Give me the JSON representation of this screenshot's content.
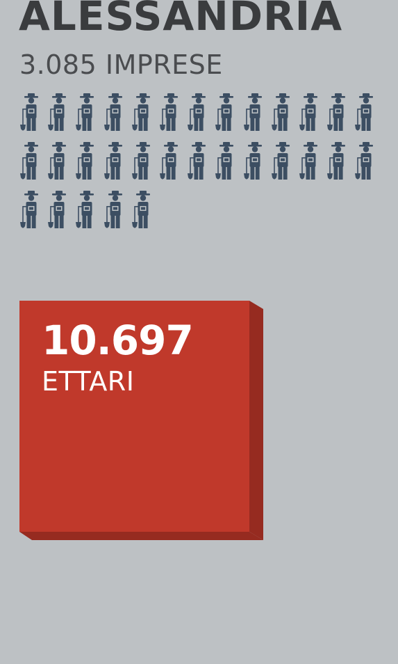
{
  "header": {
    "title": "ALESSANDRIA",
    "subtitle": "3.085 IMPRESE"
  },
  "pictogram": {
    "icon": "farmer-icon",
    "count": 31,
    "per_row": 13,
    "color": "#3c4e62"
  },
  "land_box": {
    "value": "10.697",
    "unit": "ETTARI",
    "front_color": "#c0392b",
    "side_color": "#962b20"
  },
  "colors": {
    "background": "#bdc1c4",
    "title": "#3a3c3e",
    "subtitle": "#4a4c4f"
  }
}
